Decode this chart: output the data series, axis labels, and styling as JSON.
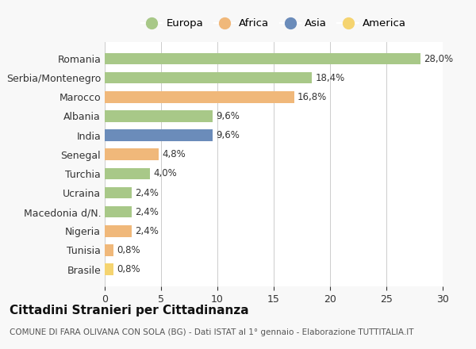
{
  "categories": [
    "Romania",
    "Serbia/Montenegro",
    "Marocco",
    "Albania",
    "India",
    "Senegal",
    "Turchia",
    "Ucraina",
    "Macedonia d/N.",
    "Nigeria",
    "Tunisia",
    "Brasile"
  ],
  "values": [
    28.0,
    18.4,
    16.8,
    9.6,
    9.6,
    4.8,
    4.0,
    2.4,
    2.4,
    2.4,
    0.8,
    0.8
  ],
  "labels": [
    "28,0%",
    "18,4%",
    "16,8%",
    "9,6%",
    "9,6%",
    "4,8%",
    "4,0%",
    "2,4%",
    "2,4%",
    "2,4%",
    "0,8%",
    "0,8%"
  ],
  "colors": [
    "#a8c888",
    "#a8c888",
    "#f0b87a",
    "#a8c888",
    "#6b8cba",
    "#f0b87a",
    "#a8c888",
    "#a8c888",
    "#a8c888",
    "#f0b87a",
    "#f0b87a",
    "#f5d470"
  ],
  "legend": [
    {
      "label": "Europa",
      "color": "#a8c888"
    },
    {
      "label": "Africa",
      "color": "#f0b87a"
    },
    {
      "label": "Asia",
      "color": "#6b8cba"
    },
    {
      "label": "America",
      "color": "#f5d470"
    }
  ],
  "xlim": [
    0,
    30
  ],
  "xticks": [
    0,
    5,
    10,
    15,
    20,
    25,
    30
  ],
  "title": "Cittadini Stranieri per Cittadinanza",
  "subtitle": "COMUNE DI FARA OLIVANA CON SOLA (BG) - Dati ISTAT al 1° gennaio - Elaborazione TUTTITALIA.IT",
  "background_color": "#f8f8f8",
  "bar_background": "#ffffff"
}
